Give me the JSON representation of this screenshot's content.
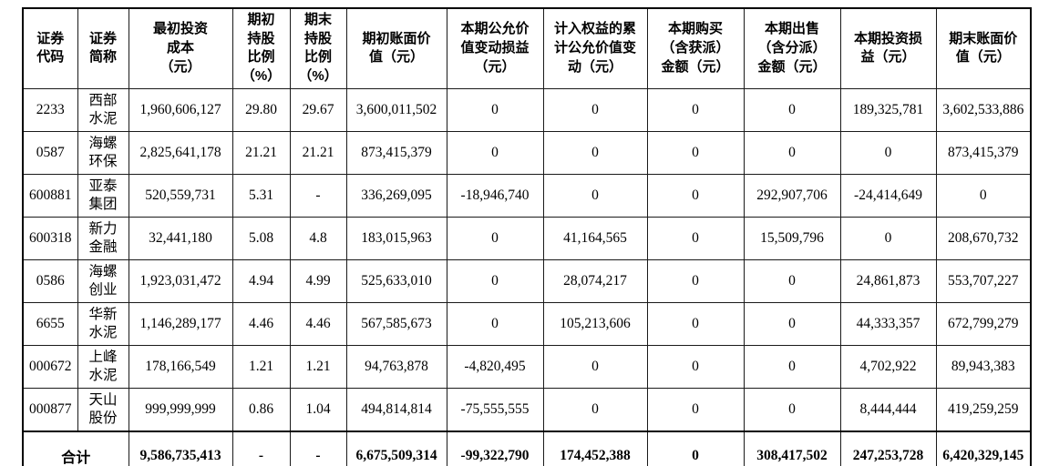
{
  "table": {
    "headers": [
      "证券\n代码",
      "证券\n简称",
      "最初投资\n成本\n（元）",
      "期初\n持股\n比例\n（%）",
      "期末\n持股\n比例\n（%）",
      "期初账面价\n值（元）",
      "本期公允价\n值变动损益\n（元）",
      "计入权益的累\n计公允价值变\n动（元）",
      "本期购买\n（含获派）\n金额（元）",
      "本期出售\n（含分派）\n金额（元）",
      "本期投资损\n益（元）",
      "期末账面价\n值（元）"
    ],
    "rows": [
      [
        "2233",
        "西部\n水泥",
        "1,960,606,127",
        "29.80",
        "29.67",
        "3,600,011,502",
        "0",
        "0",
        "0",
        "0",
        "189,325,781",
        "3,602,533,886"
      ],
      [
        "0587",
        "海螺\n环保",
        "2,825,641,178",
        "21.21",
        "21.21",
        "873,415,379",
        "0",
        "0",
        "0",
        "0",
        "0",
        "873,415,379"
      ],
      [
        "600881",
        "亚泰\n集团",
        "520,559,731",
        "5.31",
        "-",
        "336,269,095",
        "-18,946,740",
        "0",
        "0",
        "292,907,706",
        "-24,414,649",
        "0"
      ],
      [
        "600318",
        "新力\n金融",
        "32,441,180",
        "5.08",
        "4.8",
        "183,015,963",
        "0",
        "41,164,565",
        "0",
        "15,509,796",
        "0",
        "208,670,732"
      ],
      [
        "0586",
        "海螺\n创业",
        "1,923,031,472",
        "4.94",
        "4.99",
        "525,633,010",
        "0",
        "28,074,217",
        "0",
        "0",
        "24,861,873",
        "553,707,227"
      ],
      [
        "6655",
        "华新\n水泥",
        "1,146,289,177",
        "4.46",
        "4.46",
        "567,585,673",
        "0",
        "105,213,606",
        "0",
        "0",
        "44,333,357",
        "672,799,279"
      ],
      [
        "000672",
        "上峰\n水泥",
        "178,166,549",
        "1.21",
        "1.21",
        "94,763,878",
        "-4,820,495",
        "0",
        "0",
        "0",
        "4,702,922",
        "89,943,383"
      ],
      [
        "000877",
        "天山\n股份",
        "999,999,999",
        "0.86",
        "1.04",
        "494,814,814",
        "-75,555,555",
        "0",
        "0",
        "0",
        "8,444,444",
        "419,259,259"
      ]
    ],
    "total": {
      "label": "合计",
      "values": [
        "9,586,735,413",
        "-",
        "-",
        "6,675,509,314",
        "-99,322,790",
        "174,452,388",
        "0",
        "308,417,502",
        "247,253,728",
        "6,420,329,145"
      ]
    }
  },
  "colors": {
    "border": "#000000",
    "text": "#000000",
    "background": "#ffffff"
  }
}
